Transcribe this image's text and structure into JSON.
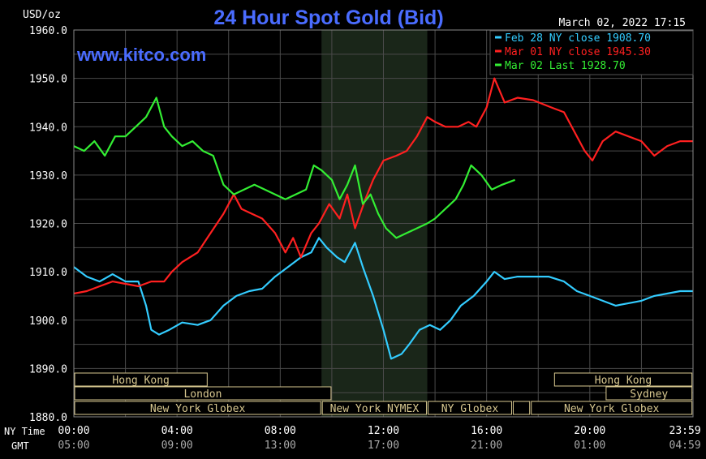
{
  "header": {
    "title": "24 Hour Spot Gold (Bid)",
    "unit_label": "USD/oz",
    "timestamp": "March 02, 2022 17:15",
    "watermark": "www.kitco.com"
  },
  "legend": [
    {
      "label": "Feb 28 NY close 1908.70",
      "color": "#33ccff"
    },
    {
      "label": "Mar 01 NY close 1945.30",
      "color": "#ff2020"
    },
    {
      "label": "Mar 02 Last 1928.70",
      "color": "#33ee33"
    }
  ],
  "row_labels": {
    "ny_time": "NY Time",
    "gmt": "GMT"
  },
  "ny_time_ticks": [
    "00:00",
    "04:00",
    "08:00",
    "12:00",
    "16:00",
    "20:00",
    "23:59"
  ],
  "gmt_ticks": [
    "05:00",
    "09:00",
    "13:00",
    "17:00",
    "21:00",
    "01:00",
    "04:59"
  ],
  "y_ticks": [
    "1960.0",
    "1950.0",
    "1940.0",
    "1930.0",
    "1920.0",
    "1910.0",
    "1900.0",
    "1890.0",
    "1880.0"
  ],
  "sessions": [
    {
      "label": "Hong Kong",
      "start": 0.0,
      "end": 5.2,
      "row": 0
    },
    {
      "label": "London",
      "start": 0.0,
      "end": 10.0,
      "row": 1
    },
    {
      "label": "New York Globex",
      "start": 0.0,
      "end": 9.6,
      "row": 2
    },
    {
      "label": "New York NYMEX",
      "start": 9.6,
      "end": 13.7,
      "row": 2
    },
    {
      "label": "NY Globex",
      "start": 13.7,
      "end": 17.0,
      "row": 2
    },
    {
      "label": "Sydney",
      "start": 20.6,
      "end": 23.99,
      "row": 1
    },
    {
      "label": "Hong Kong",
      "start": 18.6,
      "end": 23.99,
      "row": 0
    },
    {
      "label": "",
      "start": 17.0,
      "end": 17.7,
      "row": 2
    },
    {
      "label": "New York Globex",
      "start": 17.7,
      "end": 23.99,
      "row": 2
    }
  ],
  "colors": {
    "background": "#000000",
    "grid": "#4a4a4a",
    "nymex_shade": "#1a2619",
    "title": "#4a6cff",
    "watermark": "#4a6cff",
    "text": "#ffffff",
    "session_box": "#d8c890"
  },
  "chart_data": {
    "type": "line",
    "title": "24 Hour Spot Gold (Bid)",
    "ylabel": "USD/oz",
    "xlabel": "NY Time",
    "xlim": [
      0,
      24
    ],
    "ylim": [
      1880,
      1960
    ],
    "grid": true,
    "legend_position": "top-right",
    "series": [
      {
        "name": "Feb 28 NY close 1908.70",
        "color": "#33ccff",
        "x": [
          0,
          0.5,
          1.0,
          1.5,
          2.0,
          2.5,
          2.8,
          3.0,
          3.3,
          3.7,
          4.2,
          4.8,
          5.3,
          5.8,
          6.3,
          6.8,
          7.3,
          7.8,
          8.3,
          8.8,
          9.2,
          9.5,
          9.8,
          10.2,
          10.5,
          10.9,
          11.2,
          11.6,
          12.0,
          12.3,
          12.7,
          13.0,
          13.4,
          13.8,
          14.2,
          14.6,
          15.0,
          15.5,
          16.0,
          16.3,
          16.7,
          17.2,
          17.8,
          18.4,
          19.0,
          19.5,
          20.0,
          20.5,
          21.0,
          21.5,
          22.0,
          22.5,
          23.0,
          23.5,
          23.99
        ],
        "values": [
          1911,
          1909,
          1908,
          1909.5,
          1908,
          1908,
          1903,
          1898,
          1897,
          1898,
          1899.5,
          1899,
          1900,
          1903,
          1905,
          1906,
          1906.5,
          1909,
          1911,
          1913,
          1914,
          1917,
          1915,
          1913,
          1912,
          1916,
          1911,
          1905,
          1898,
          1892,
          1893,
          1895,
          1898,
          1899,
          1898,
          1900,
          1903,
          1905,
          1908,
          1910,
          1908.5,
          1909,
          1909,
          1909,
          1908,
          1906,
          1905,
          1904,
          1903,
          1903.5,
          1904,
          1905,
          1905.5,
          1906,
          1906
        ]
      },
      {
        "name": "Mar 01 NY close 1945.30",
        "color": "#ff2020",
        "x": [
          0,
          0.5,
          1.0,
          1.5,
          2.0,
          2.5,
          3.0,
          3.5,
          3.8,
          4.2,
          4.8,
          5.3,
          5.8,
          6.2,
          6.5,
          6.9,
          7.3,
          7.8,
          8.2,
          8.5,
          8.8,
          9.2,
          9.5,
          9.9,
          10.3,
          10.6,
          10.9,
          11.3,
          11.6,
          12.0,
          12.5,
          12.9,
          13.3,
          13.7,
          14.0,
          14.4,
          14.9,
          15.3,
          15.6,
          16.0,
          16.3,
          16.7,
          17.2,
          17.8,
          18.5,
          19.0,
          19.5,
          19.8,
          20.1,
          20.5,
          21.0,
          21.5,
          22.0,
          22.5,
          23.0,
          23.5,
          23.99
        ],
        "values": [
          1905.5,
          1906,
          1907,
          1908,
          1907.5,
          1907,
          1908,
          1908,
          1910,
          1912,
          1914,
          1918,
          1922,
          1926,
          1923,
          1922,
          1921,
          1918,
          1914,
          1917,
          1913,
          1918,
          1920,
          1924,
          1921,
          1926,
          1919,
          1925,
          1929,
          1933,
          1934,
          1935,
          1938,
          1942,
          1941,
          1940,
          1940,
          1941,
          1940,
          1944,
          1950,
          1945,
          1946,
          1945.5,
          1944,
          1943,
          1938,
          1935,
          1933,
          1937,
          1939,
          1938,
          1937,
          1934,
          1936,
          1937,
          1937
        ]
      },
      {
        "name": "Mar 02 Last 1928.70",
        "color": "#33ee33",
        "x": [
          0,
          0.4,
          0.8,
          1.2,
          1.6,
          2.0,
          2.4,
          2.8,
          3.2,
          3.5,
          3.8,
          4.2,
          4.6,
          5.0,
          5.4,
          5.8,
          6.2,
          6.6,
          7.0,
          7.4,
          7.8,
          8.2,
          8.6,
          9.0,
          9.3,
          9.6,
          10.0,
          10.3,
          10.6,
          10.9,
          11.2,
          11.5,
          11.8,
          12.1,
          12.5,
          12.9,
          13.3,
          13.7,
          14.0,
          14.4,
          14.8,
          15.1,
          15.4,
          15.8,
          16.2,
          16.6,
          17.1
        ],
        "values": [
          1936,
          1935,
          1937,
          1934,
          1938,
          1938,
          1940,
          1942,
          1946,
          1940,
          1938,
          1936,
          1937,
          1935,
          1934,
          1928,
          1926,
          1927,
          1928,
          1927,
          1926,
          1925,
          1926,
          1927,
          1932,
          1931,
          1929,
          1925,
          1928,
          1932,
          1924,
          1926,
          1922,
          1919,
          1917,
          1918,
          1919,
          1920,
          1921,
          1923,
          1925,
          1928,
          1932,
          1930,
          1927,
          1928,
          1929
        ]
      }
    ]
  }
}
